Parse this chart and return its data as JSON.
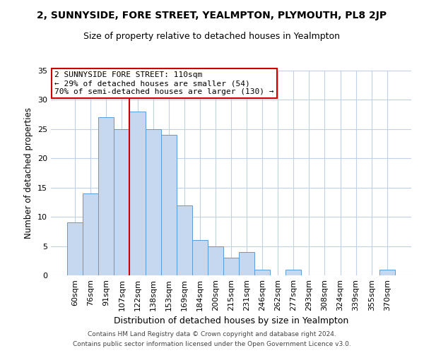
{
  "title": "2, SUNNYSIDE, FORE STREET, YEALMPTON, PLYMOUTH, PL8 2JP",
  "subtitle": "Size of property relative to detached houses in Yealmpton",
  "xlabel": "Distribution of detached houses by size in Yealmpton",
  "ylabel": "Number of detached properties",
  "bar_labels": [
    "60sqm",
    "76sqm",
    "91sqm",
    "107sqm",
    "122sqm",
    "138sqm",
    "153sqm",
    "169sqm",
    "184sqm",
    "200sqm",
    "215sqm",
    "231sqm",
    "246sqm",
    "262sqm",
    "277sqm",
    "293sqm",
    "308sqm",
    "324sqm",
    "339sqm",
    "355sqm",
    "370sqm"
  ],
  "bar_values": [
    9,
    14,
    27,
    25,
    28,
    25,
    24,
    12,
    6,
    5,
    3,
    4,
    1,
    0,
    1,
    0,
    0,
    0,
    0,
    0,
    1
  ],
  "bar_color": "#c5d8f0",
  "bar_edgecolor": "#5b9bd5",
  "vline_x_index": 3.5,
  "vline_color": "#cc0000",
  "annotation_lines": [
    "2 SUNNYSIDE FORE STREET: 110sqm",
    "← 29% of detached houses are smaller (54)",
    "70% of semi-detached houses are larger (130) →"
  ],
  "annotation_box_edgecolor": "#cc0000",
  "ylim": [
    0,
    35
  ],
  "yticks": [
    0,
    5,
    10,
    15,
    20,
    25,
    30,
    35
  ],
  "footer_lines": [
    "Contains HM Land Registry data © Crown copyright and database right 2024.",
    "Contains public sector information licensed under the Open Government Licence v3.0."
  ],
  "background_color": "#ffffff",
  "grid_color": "#c0d0e8",
  "title_fontsize": 10,
  "subtitle_fontsize": 9,
  "ylabel_fontsize": 8.5,
  "xlabel_fontsize": 9,
  "annot_fontsize": 8,
  "tick_fontsize": 8,
  "footer_fontsize": 6.5
}
